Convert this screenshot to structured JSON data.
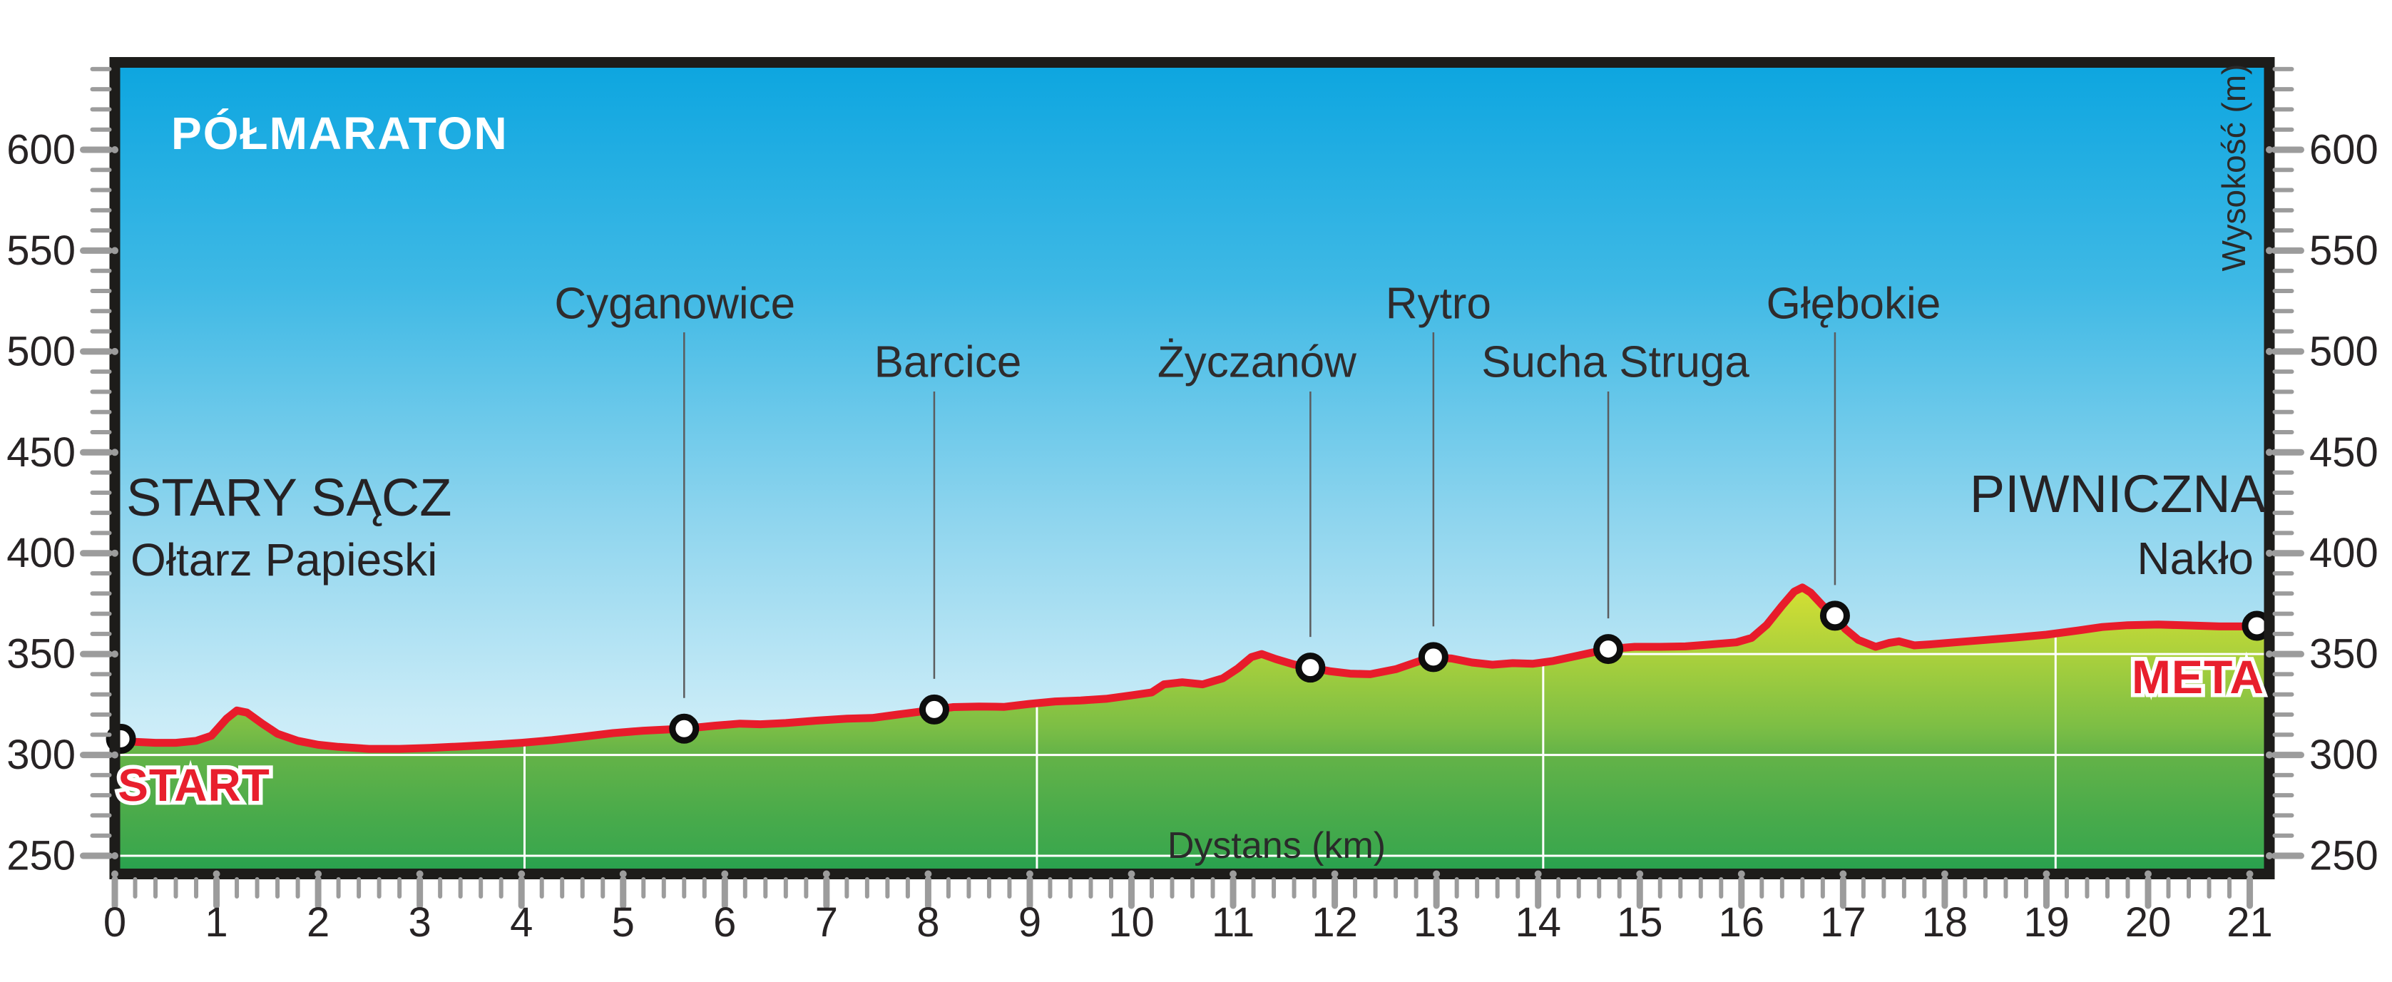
{
  "title": "PÓŁMARATON",
  "start_area": {
    "city": "STARY SĄCZ",
    "venue": "Ołtarz Papieski",
    "badge": "START"
  },
  "finish_area": {
    "city": "PIWNICZNA",
    "venue": "Nakło",
    "badge": "META"
  },
  "axes": {
    "x_label": "Dystans (km)",
    "y_label": "Wysokość (m)",
    "x_major_ticks": [
      0,
      1,
      2,
      3,
      4,
      5,
      6,
      7,
      8,
      9,
      10,
      11,
      12,
      13,
      14,
      15,
      16,
      17,
      18,
      19,
      20,
      21
    ],
    "x_minor_step": 0.2,
    "y_major_ticks": [
      250,
      300,
      350,
      400,
      450,
      500,
      550,
      600
    ],
    "y_minor_step": 10,
    "y_minor_max": 640
  },
  "colors": {
    "sky_top": "#0ea6e0",
    "sky_bottom": "#d9f2fa",
    "terrain_high": "#d9e032",
    "terrain_mid": "#7cbe45",
    "terrain_low": "#2aa14e",
    "line_red": "#e81c2b",
    "frame": "#1d1c1a",
    "tick_gray": "#9c9c9c",
    "gridline_white": "#ffffff"
  },
  "chart_data": {
    "type": "area",
    "title": "PÓŁMARATON",
    "xlabel": "Dystans (km)",
    "ylabel": "Wysokość (m)",
    "xlim": [
      0,
      21.16
    ],
    "ylim_labeled": [
      250,
      600
    ],
    "grid": "partial (white lines inside terrain fill only)",
    "profile_km_elevation": [
      [
        0,
        308
      ],
      [
        0.2,
        306.5
      ],
      [
        0.4,
        306
      ],
      [
        0.6,
        306
      ],
      [
        0.8,
        307
      ],
      [
        0.95,
        309.5
      ],
      [
        1.1,
        318
      ],
      [
        1.2,
        322
      ],
      [
        1.3,
        321
      ],
      [
        1.45,
        315.5
      ],
      [
        1.6,
        310.5
      ],
      [
        1.8,
        307
      ],
      [
        2.0,
        305
      ],
      [
        2.2,
        304
      ],
      [
        2.5,
        303
      ],
      [
        2.8,
        303
      ],
      [
        3.1,
        303.5
      ],
      [
        3.4,
        304.2
      ],
      [
        3.7,
        305
      ],
      [
        4.0,
        306
      ],
      [
        4.3,
        307.3
      ],
      [
        4.6,
        309
      ],
      [
        4.9,
        310.8
      ],
      [
        5.2,
        312
      ],
      [
        5.6,
        313
      ],
      [
        5.9,
        314.5
      ],
      [
        6.15,
        315.5
      ],
      [
        6.35,
        315.2
      ],
      [
        6.6,
        315.8
      ],
      [
        6.9,
        317
      ],
      [
        7.2,
        318
      ],
      [
        7.45,
        318.3
      ],
      [
        7.7,
        320
      ],
      [
        7.9,
        321.3
      ],
      [
        8.06,
        322.5
      ],
      [
        8.25,
        323.7
      ],
      [
        8.5,
        324
      ],
      [
        8.75,
        323.8
      ],
      [
        9.0,
        325.3
      ],
      [
        9.25,
        326.5
      ],
      [
        9.5,
        327
      ],
      [
        9.75,
        327.8
      ],
      [
        10.0,
        329.5
      ],
      [
        10.2,
        331
      ],
      [
        10.32,
        335
      ],
      [
        10.5,
        336
      ],
      [
        10.7,
        335
      ],
      [
        10.9,
        338
      ],
      [
        11.05,
        343
      ],
      [
        11.18,
        348.5
      ],
      [
        11.28,
        350
      ],
      [
        11.42,
        347.5
      ],
      [
        11.6,
        344.8
      ],
      [
        11.76,
        343.3
      ],
      [
        11.95,
        341.5
      ],
      [
        12.15,
        340.3
      ],
      [
        12.35,
        340
      ],
      [
        12.6,
        342.5
      ],
      [
        12.85,
        346.8
      ],
      [
        12.97,
        348.5
      ],
      [
        13.15,
        347.8
      ],
      [
        13.35,
        345.8
      ],
      [
        13.55,
        344.7
      ],
      [
        13.75,
        345.5
      ],
      [
        13.95,
        345.2
      ],
      [
        14.15,
        346.6
      ],
      [
        14.4,
        349.3
      ],
      [
        14.69,
        352.5
      ],
      [
        14.95,
        353.6
      ],
      [
        15.2,
        353.6
      ],
      [
        15.45,
        353.8
      ],
      [
        15.7,
        354.8
      ],
      [
        15.95,
        355.8
      ],
      [
        16.1,
        358
      ],
      [
        16.25,
        364.5
      ],
      [
        16.4,
        374
      ],
      [
        16.52,
        381
      ],
      [
        16.6,
        383
      ],
      [
        16.68,
        380.5
      ],
      [
        16.8,
        374
      ],
      [
        16.92,
        369
      ],
      [
        17.02,
        362.5
      ],
      [
        17.15,
        357
      ],
      [
        17.32,
        353.6
      ],
      [
        17.45,
        355.5
      ],
      [
        17.55,
        356.3
      ],
      [
        17.7,
        354.3
      ],
      [
        17.85,
        354.8
      ],
      [
        18.1,
        355.8
      ],
      [
        18.4,
        357
      ],
      [
        18.7,
        358.2
      ],
      [
        19.0,
        359.6
      ],
      [
        19.3,
        361.6
      ],
      [
        19.55,
        363.4
      ],
      [
        19.8,
        364.3
      ],
      [
        20.1,
        364.6
      ],
      [
        20.4,
        364.2
      ],
      [
        20.7,
        363.7
      ],
      [
        20.95,
        363.7
      ],
      [
        21.07,
        364
      ],
      [
        21.16,
        364.2
      ]
    ],
    "waypoints": [
      {
        "name": "",
        "km": 0.06,
        "elevation": 308
      },
      {
        "name": "Cyganowice",
        "km": 5.6,
        "elevation": 313,
        "row": "upper",
        "label_offset": -13
      },
      {
        "name": "Barcice",
        "km": 8.06,
        "elevation": 322.5,
        "row": "lower",
        "label_offset": 19
      },
      {
        "name": "Życzanów",
        "km": 11.76,
        "elevation": 343.3,
        "row": "lower",
        "label_offset": -75
      },
      {
        "name": "Rytro",
        "km": 12.97,
        "elevation": 348.5,
        "row": "upper",
        "label_offset": 7
      },
      {
        "name": "Sucha Struga",
        "km": 14.69,
        "elevation": 352.5,
        "row": "lower",
        "label_offset": 10
      },
      {
        "name": "Głębokie",
        "km": 16.92,
        "elevation": 369,
        "row": "upper",
        "label_offset": 26
      },
      {
        "name": "",
        "km": 21.07,
        "elevation": 364
      }
    ],
    "gridlines": {
      "horizontal_m": [
        250,
        300,
        350
      ],
      "vertical_km": [
        4.03,
        9.07,
        14.05,
        19.09
      ]
    }
  }
}
